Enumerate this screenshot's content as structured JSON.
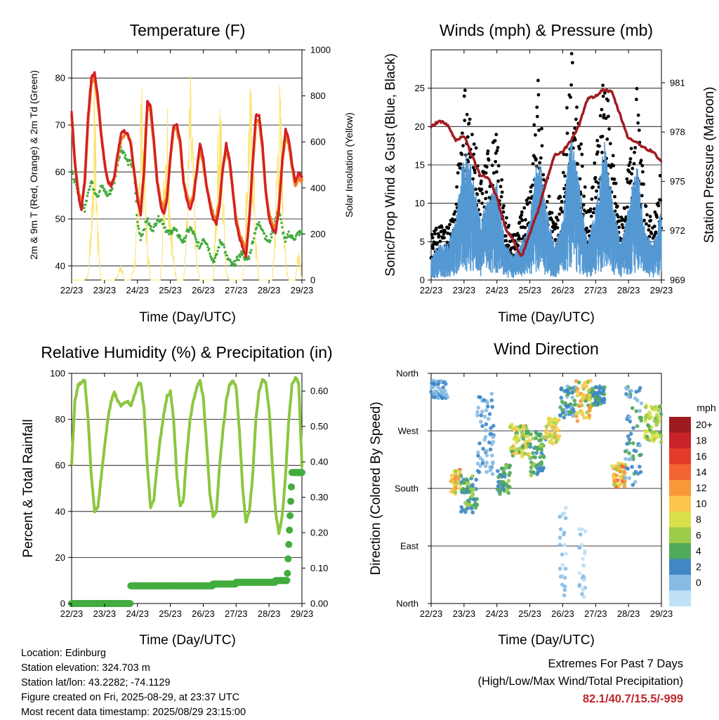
{
  "colors": {
    "temp2m": "#d21f26",
    "temp9m": "#f47d20",
    "dewpoint": "#43ac3f",
    "solar": "#fbe36b",
    "gust": "#000000",
    "wind": "#5599d3",
    "pressure": "#a01c22",
    "rh": "#8cc63f",
    "precip": "#43ac3f",
    "extremes": "#c0262d"
  },
  "x_axis": {
    "label": "Time (Day/UTC)",
    "ticks": [
      "22/23",
      "23/23",
      "24/23",
      "25/23",
      "26/23",
      "27/23",
      "28/23",
      "29/23"
    ]
  },
  "panels": {
    "temperature": {
      "title": "Temperature (F)",
      "ylabel_left": "2m & 9m T (Red, Orange) & 2m Td (Green)",
      "ylabel_right": "Solar Insolation (Yellow)"
    },
    "winds": {
      "title": "Winds (mph) & Pressure (mb)",
      "ylabel_left": "Sonic/Prop Wind & Gust (Blue, Black)",
      "ylabel_right": "Station Pressure (Maroon)"
    },
    "humidity": {
      "title": "Relative Humidity (%) & Precipitation (in)",
      "ylabel_left": "Percent & Total Rainfall"
    },
    "direction": {
      "title": "Wind Direction",
      "ylabel_left": "Direction (Colored By Speed)",
      "legend_title": "mph",
      "legend_labels": [
        "20+",
        "18",
        "16",
        "14",
        "12",
        "10",
        "8",
        "6",
        "4",
        "2",
        "0"
      ],
      "legend_colors": [
        "#9e1b1f",
        "#c9232a",
        "#e43a2a",
        "#f26430",
        "#f89838",
        "#fdc54c",
        "#d9e04a",
        "#9ccd48",
        "#4faa5a",
        "#3f87c5",
        "#86bbe6",
        "#bfe1f5"
      ]
    }
  },
  "info": {
    "location": "Location: Edinburg",
    "elevation": "Station elevation: 324.703 m",
    "latlon": "Station lat/lon: 43.2282; -74.1129",
    "created": "Figure created on Fri, 2025-08-29, at 23:37 UTC",
    "recent": "Most recent data timestamp: 2025/08/29 23:15:00"
  },
  "extremes": {
    "line1": "Extremes For Past 7 Days",
    "line2": "(High/Low/Max Wind/Total Precipitation)",
    "values": "82.1/40.7/15.5/-999"
  },
  "chart_data": [
    {
      "type": "line",
      "title": "Temperature (F)",
      "xlabel": "Time (Day/UTC)",
      "ylabel": "2m & 9m T (Red, Orange) & 2m Td (Green)",
      "ylabel_right": "Solar Insolation (Yellow)",
      "xlim": [
        0,
        7
      ],
      "ylim": [
        37,
        86
      ],
      "yticks": [
        40,
        50,
        60,
        70,
        80
      ],
      "ylim_right": [
        0,
        1000
      ],
      "yticks_right": [
        0,
        200,
        400,
        600,
        800,
        1000
      ],
      "x": [
        0,
        0.1,
        0.2,
        0.3,
        0.4,
        0.5,
        0.6,
        0.7,
        0.8,
        0.9,
        1.0,
        1.1,
        1.2,
        1.3,
        1.4,
        1.5,
        1.6,
        1.7,
        1.8,
        1.9,
        2.0,
        2.1,
        2.2,
        2.3,
        2.4,
        2.5,
        2.6,
        2.7,
        2.8,
        2.9,
        3.0,
        3.1,
        3.2,
        3.3,
        3.4,
        3.5,
        3.6,
        3.7,
        3.8,
        3.9,
        4.0,
        4.1,
        4.2,
        4.3,
        4.4,
        4.5,
        4.6,
        4.7,
        4.8,
        4.9,
        5.0,
        5.1,
        5.2,
        5.3,
        5.4,
        5.5,
        5.6,
        5.7,
        5.8,
        5.9,
        6.0,
        6.1,
        6.2,
        6.3,
        6.4,
        6.5,
        6.6,
        6.7,
        6.8,
        6.9,
        7.0
      ],
      "series": [
        {
          "name": "2m T",
          "color": "#d21f26",
          "values": [
            73,
            62,
            55,
            52,
            58,
            72,
            80,
            81,
            76,
            68,
            62,
            58,
            57,
            59,
            64,
            68,
            69,
            68,
            66,
            60,
            54,
            51,
            60,
            75,
            74,
            67,
            58,
            53,
            51,
            54,
            63,
            70,
            70,
            67,
            58,
            54,
            52,
            54,
            60,
            66,
            63,
            57,
            53,
            50,
            49,
            53,
            61,
            66,
            63,
            56,
            49,
            46,
            44,
            42,
            50,
            62,
            72,
            72,
            66,
            56,
            50,
            48,
            47,
            52,
            62,
            69,
            67,
            62,
            58,
            60,
            59
          ]
        },
        {
          "name": "9m T",
          "color": "#f47d20",
          "values": [
            72,
            62,
            56,
            53,
            58,
            71,
            79,
            80,
            75,
            68,
            62,
            58,
            57,
            59,
            63,
            67,
            68,
            68,
            66,
            60,
            55,
            52,
            60,
            74,
            73,
            66,
            58,
            54,
            52,
            55,
            63,
            69,
            69,
            66,
            58,
            55,
            53,
            55,
            60,
            65,
            62,
            57,
            54,
            51,
            50,
            54,
            61,
            65,
            62,
            56,
            50,
            47,
            45,
            43,
            50,
            61,
            71,
            71,
            65,
            56,
            51,
            49,
            48,
            53,
            62,
            68,
            66,
            61,
            57,
            59,
            58
          ]
        },
        {
          "name": "2m Td",
          "color": "#43ac3f",
          "values": [
            60,
            58,
            55,
            53,
            52,
            56,
            58,
            56,
            55,
            57,
            56,
            55,
            56,
            58,
            62,
            65,
            64,
            62,
            62,
            60,
            49,
            46,
            48,
            50,
            48,
            48,
            50,
            50,
            49,
            47,
            47,
            48,
            47,
            46,
            45,
            47,
            48,
            47,
            45,
            44,
            46,
            45,
            43,
            41,
            42,
            45,
            45,
            42,
            41,
            40,
            41,
            42,
            43,
            41,
            42,
            45,
            48,
            49,
            48,
            46,
            45,
            47,
            50,
            52,
            48,
            45,
            47,
            46,
            46,
            47,
            47
          ]
        },
        {
          "name": "Solar",
          "color": "#fbe36b",
          "values": [
            0,
            0,
            0,
            0,
            0,
            30,
            350,
            900,
            250,
            0,
            0,
            0,
            0,
            0,
            20,
            100,
            0,
            0,
            0,
            80,
            300,
            950,
            700,
            200,
            0,
            0,
            0,
            0,
            500,
            950,
            400,
            100,
            0,
            0,
            0,
            300,
            950,
            600,
            100,
            0,
            0,
            0,
            0,
            0,
            450,
            950,
            500,
            50,
            0,
            0,
            0,
            0,
            0,
            400,
            900,
            800,
            200,
            0,
            0,
            0,
            0,
            0,
            350,
            950,
            700,
            100,
            0,
            0,
            0,
            200,
            0
          ]
        }
      ]
    },
    {
      "type": "line",
      "title": "Winds (mph) & Pressure (mb)",
      "xlabel": "Time (Day/UTC)",
      "ylabel": "Sonic/Prop Wind & Gust (Blue, Black)",
      "ylabel_right": "Station Pressure (Maroon)",
      "xlim": [
        0,
        7
      ],
      "ylim": [
        0,
        30
      ],
      "yticks": [
        0,
        5,
        10,
        15,
        20,
        25
      ],
      "ylim_right": [
        969,
        983
      ],
      "yticks_right": [
        969,
        972,
        975,
        978,
        981
      ],
      "x": [
        0,
        0.25,
        0.5,
        0.75,
        1.0,
        1.25,
        1.5,
        1.75,
        2.0,
        2.25,
        2.5,
        2.75,
        3.0,
        3.25,
        3.5,
        3.75,
        4.0,
        4.25,
        4.5,
        4.75,
        5.0,
        5.25,
        5.5,
        5.75,
        6.0,
        6.25,
        6.5,
        6.75,
        7.0
      ],
      "series": [
        {
          "name": "Gust",
          "color": "#000000",
          "values": [
            4,
            5,
            5,
            7,
            18,
            14,
            9,
            12,
            13,
            6,
            4,
            6,
            9,
            18,
            10,
            5,
            10,
            21,
            14,
            6,
            11,
            20,
            12,
            5,
            10,
            17,
            7,
            5,
            10
          ]
        },
        {
          "name": "Wind",
          "color": "#5599d3",
          "values": [
            2,
            3,
            3,
            5,
            11,
            9,
            5,
            7,
            8,
            3,
            2,
            3,
            5,
            11,
            6,
            3,
            5,
            12,
            8,
            3,
            6,
            12,
            7,
            3,
            6,
            10,
            4,
            3,
            6
          ]
        },
        {
          "name": "Station Pressure",
          "color": "#a01c22",
          "values": [
            978.3,
            978.7,
            978.4,
            977.5,
            977.8,
            976.5,
            975.4,
            975.2,
            974.0,
            972.2,
            971.4,
            970.4,
            971.8,
            973.2,
            975.0,
            976.6,
            976.8,
            977.5,
            978.4,
            980.0,
            980.2,
            980.6,
            980.4,
            979.0,
            977.6,
            977.4,
            977.0,
            976.8,
            976.2
          ]
        }
      ]
    },
    {
      "type": "line",
      "title": "Relative Humidity (%) & Precipitation (in)",
      "xlabel": "Time (Day/UTC)",
      "ylabel": "Percent & Total Rainfall",
      "xlim": [
        0,
        7
      ],
      "ylim": [
        0,
        100
      ],
      "yticks": [
        0,
        20,
        40,
        60,
        80,
        100
      ],
      "ylim_right": [
        0,
        0.65
      ],
      "yticks_right": [
        0.0,
        0.1,
        0.2,
        0.3,
        0.4,
        0.5,
        0.6
      ],
      "x": [
        0,
        0.1,
        0.2,
        0.3,
        0.4,
        0.5,
        0.6,
        0.7,
        0.8,
        0.9,
        1.0,
        1.1,
        1.2,
        1.3,
        1.4,
        1.5,
        1.6,
        1.7,
        1.8,
        1.9,
        2.0,
        2.1,
        2.2,
        2.3,
        2.4,
        2.5,
        2.6,
        2.7,
        2.8,
        2.9,
        3.0,
        3.1,
        3.2,
        3.3,
        3.4,
        3.5,
        3.6,
        3.7,
        3.8,
        3.9,
        4.0,
        4.1,
        4.2,
        4.3,
        4.4,
        4.5,
        4.6,
        4.7,
        4.8,
        4.9,
        5.0,
        5.1,
        5.2,
        5.3,
        5.4,
        5.5,
        5.6,
        5.7,
        5.8,
        5.9,
        6.0,
        6.1,
        6.2,
        6.3,
        6.4,
        6.5,
        6.6,
        6.7,
        6.8,
        6.9,
        7.0
      ],
      "series": [
        {
          "name": "RH",
          "color": "#8cc63f",
          "values": [
            60,
            88,
            95,
            96,
            97,
            80,
            55,
            40,
            42,
            55,
            68,
            80,
            88,
            92,
            88,
            86,
            87,
            88,
            86,
            90,
            95,
            96,
            85,
            60,
            42,
            45,
            60,
            72,
            82,
            90,
            92,
            80,
            55,
            42,
            45,
            65,
            80,
            88,
            94,
            97,
            90,
            70,
            48,
            38,
            40,
            60,
            75,
            88,
            95,
            97,
            94,
            75,
            50,
            35,
            40,
            55,
            80,
            92,
            97,
            96,
            85,
            60,
            40,
            30,
            38,
            55,
            80,
            95,
            98,
            96,
            60
          ]
        },
        {
          "name": "Total Rainfall",
          "color": "#43ac3f",
          "values": [
            0,
            0,
            0,
            0,
            0,
            0,
            0,
            0,
            0,
            0,
            0,
            0,
            0,
            0,
            0,
            0,
            0,
            0,
            0.05,
            0.05,
            0.05,
            0.05,
            0.05,
            0.05,
            0.05,
            0.05,
            0.05,
            0.05,
            0.05,
            0.05,
            0.05,
            0.05,
            0.05,
            0.05,
            0.05,
            0.05,
            0.05,
            0.05,
            0.05,
            0.05,
            0.05,
            0.05,
            0.05,
            0.055,
            0.055,
            0.055,
            0.055,
            0.055,
            0.055,
            0.055,
            0.06,
            0.06,
            0.06,
            0.06,
            0.06,
            0.06,
            0.06,
            0.06,
            0.06,
            0.06,
            0.06,
            0.06,
            0.065,
            0.065,
            0.065,
            0.065,
            0.065,
            0.37,
            0.37,
            0.37,
            0.37
          ]
        }
      ]
    },
    {
      "type": "scatter",
      "title": "Wind Direction",
      "xlabel": "Time (Day/UTC)",
      "ylabel": "Direction (Colored By Speed)",
      "xlim": [
        0,
        7
      ],
      "ylim": [
        0,
        360
      ],
      "yticks": [
        "North",
        "East",
        "South",
        "West",
        "North"
      ],
      "ytick_values": [
        0,
        90,
        180,
        270,
        360
      ],
      "legend_title": "mph",
      "clusters": [
        {
          "x": [
            0.0,
            0.5
          ],
          "dir": [
            320,
            350
          ],
          "speed": [
            1,
            5
          ]
        },
        {
          "x": [
            0.6,
            0.9
          ],
          "dir": [
            170,
            210
          ],
          "speed": [
            7,
            16
          ]
        },
        {
          "x": [
            0.9,
            1.4
          ],
          "dir": [
            140,
            200
          ],
          "speed": [
            3,
            8
          ]
        },
        {
          "x": [
            1.4,
            1.9
          ],
          "dir": [
            200,
            330
          ],
          "speed": [
            1,
            5
          ]
        },
        {
          "x": [
            2.0,
            2.4
          ],
          "dir": [
            170,
            220
          ],
          "speed": [
            4,
            8
          ]
        },
        {
          "x": [
            2.4,
            3.0
          ],
          "dir": [
            230,
            280
          ],
          "speed": [
            6,
            12
          ]
        },
        {
          "x": [
            3.0,
            3.5
          ],
          "dir": [
            200,
            270
          ],
          "speed": [
            3,
            8
          ]
        },
        {
          "x": [
            3.5,
            3.9
          ],
          "dir": [
            250,
            290
          ],
          "speed": [
            8,
            13
          ]
        },
        {
          "x": [
            3.9,
            4.4
          ],
          "dir": [
            290,
            340
          ],
          "speed": [
            2,
            6
          ]
        },
        {
          "x": [
            4.4,
            4.9
          ],
          "dir": [
            280,
            350
          ],
          "speed": [
            6,
            14
          ]
        },
        {
          "x": [
            4.9,
            5.3
          ],
          "dir": [
            310,
            340
          ],
          "speed": [
            3,
            6
          ]
        },
        {
          "x": [
            5.5,
            5.9
          ],
          "dir": [
            180,
            220
          ],
          "speed": [
            8,
            16
          ]
        },
        {
          "x": [
            5.9,
            6.4
          ],
          "dir": [
            180,
            340
          ],
          "speed": [
            2,
            6
          ]
        },
        {
          "x": [
            6.5,
            7.0
          ],
          "dir": [
            250,
            310
          ],
          "speed": [
            6,
            11
          ]
        },
        {
          "x": [
            3.9,
            4.1
          ],
          "dir": [
            10,
            160
          ],
          "speed": [
            0,
            3
          ]
        },
        {
          "x": [
            4.5,
            4.7
          ],
          "dir": [
            10,
            120
          ],
          "speed": [
            0,
            2
          ]
        }
      ]
    }
  ]
}
